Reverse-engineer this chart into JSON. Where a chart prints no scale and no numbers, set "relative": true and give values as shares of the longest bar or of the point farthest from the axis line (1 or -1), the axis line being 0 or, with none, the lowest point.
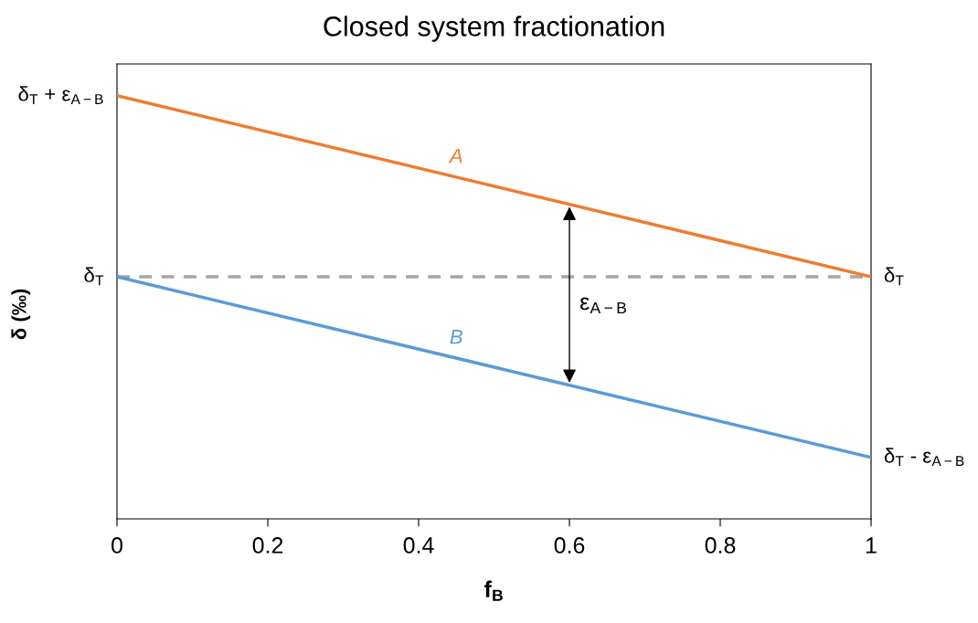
{
  "chart_data": {
    "type": "line",
    "title": "Closed system fractionation",
    "xlabel": "f$_{B}$",
    "ylabel": "δ (‰)",
    "relative": true,
    "xlim": [
      0,
      1
    ],
    "xticks": [
      0,
      {
        "value": 0.2,
        "label": "0.2"
      },
      {
        "value": 0.4,
        "label": "0.4"
      },
      {
        "value": 0.6,
        "label": "0.6"
      },
      {
        "value": 0.8,
        "label": "0.8"
      },
      1
    ],
    "x": [
      0,
      1
    ],
    "series": [
      {
        "name": "A",
        "color": "#ed7d31",
        "values": [
          1,
          0.572
        ]
      },
      {
        "name": "B",
        "color": "#5b9bd5",
        "values": [
          0.572,
          0.145
        ]
      }
    ],
    "ref_lines": [
      {
        "axis": "y",
        "value": 0.572,
        "color": "#a5a5a5",
        "line_style": "dashed"
      }
    ],
    "annotations": [
      "δ$_{T}$ + ε$_{A−B}$",
      "δ$_{T}$",
      "δ$_{T}$",
      "δ$_{T}$ - ε$_{A−B}$",
      "ε$_{A−B}$"
    ],
    "grid": false,
    "legend": false,
    "marker": "none",
    "line_style": "solid"
  }
}
